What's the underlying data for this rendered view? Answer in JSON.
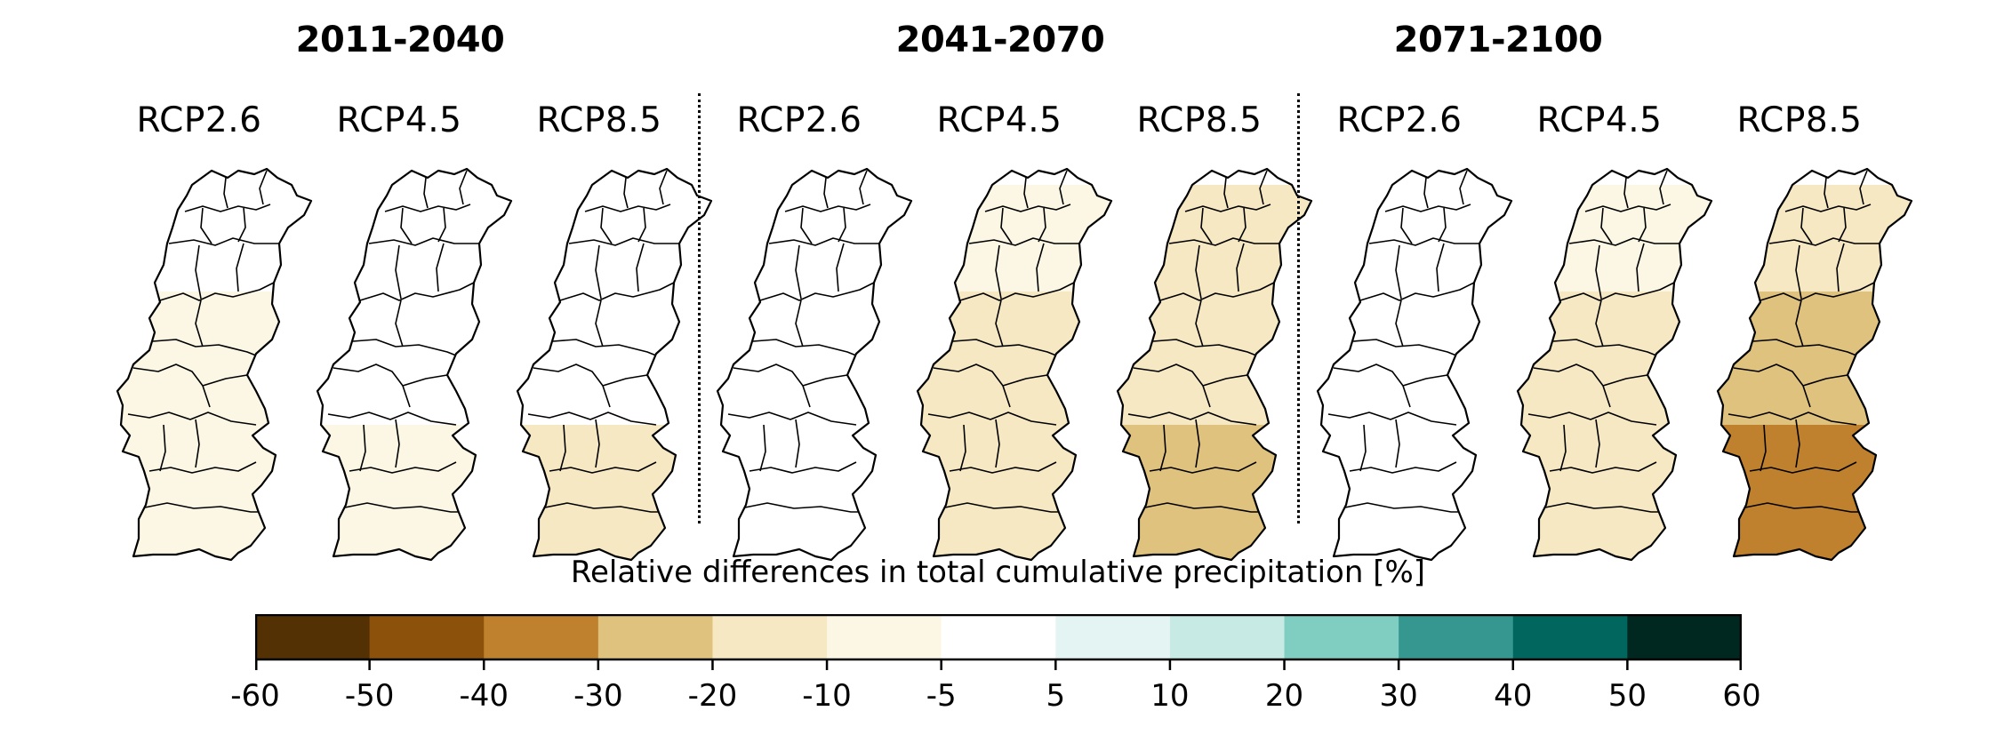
{
  "periods": [
    {
      "label": "2011-2040",
      "scenarios": [
        "RCP2.6",
        "RCP4.5",
        "RCP8.5"
      ]
    },
    {
      "label": "2041-2070",
      "scenarios": [
        "RCP2.6",
        "RCP4.5",
        "RCP8.5"
      ]
    },
    {
      "label": "2071-2100",
      "scenarios": [
        "RCP2.6",
        "RCP4.5",
        "RCP8.5"
      ]
    }
  ],
  "maps": [
    {
      "period": "2011-2040",
      "scenario": "RCP2.6",
      "approx_change_pct": {
        "north": 0,
        "center": -7,
        "south": -7
      }
    },
    {
      "period": "2011-2040",
      "scenario": "RCP4.5",
      "approx_change_pct": {
        "north": 0,
        "center": 0,
        "south": -7
      }
    },
    {
      "period": "2011-2040",
      "scenario": "RCP8.5",
      "approx_change_pct": {
        "north": 0,
        "center": 0,
        "south": -12
      }
    },
    {
      "period": "2041-2070",
      "scenario": "RCP2.6",
      "approx_change_pct": {
        "north": 0,
        "center": 0,
        "south": 0
      }
    },
    {
      "period": "2041-2070",
      "scenario": "RCP4.5",
      "approx_change_pct": {
        "north": -7,
        "center": -12,
        "south": -15
      }
    },
    {
      "period": "2041-2070",
      "scenario": "RCP8.5",
      "approx_change_pct": {
        "north": -15,
        "center": -17,
        "south": -25
      }
    },
    {
      "period": "2071-2100",
      "scenario": "RCP2.6",
      "approx_change_pct": {
        "north": 0,
        "center": 0,
        "south": 0
      }
    },
    {
      "period": "2071-2100",
      "scenario": "RCP4.5",
      "approx_change_pct": {
        "north": -7,
        "center": -12,
        "south": -15
      }
    },
    {
      "period": "2071-2100",
      "scenario": "RCP8.5",
      "approx_change_pct": {
        "north": -18,
        "center": -27,
        "south": -38
      }
    }
  ],
  "colorbar": {
    "title": "Relative differences in total cumulative precipitation [%]",
    "ticks": [
      "-60",
      "-50",
      "-40",
      "-30",
      "-20",
      "-10",
      "-5",
      "5",
      "10",
      "20",
      "30",
      "40",
      "50",
      "60"
    ],
    "bins": [
      {
        "min": -60,
        "max": -50,
        "color": "#543005"
      },
      {
        "min": -50,
        "max": -40,
        "color": "#8c510a"
      },
      {
        "min": -40,
        "max": -30,
        "color": "#bf812d"
      },
      {
        "min": -30,
        "max": -20,
        "color": "#dfc27d"
      },
      {
        "min": -20,
        "max": -10,
        "color": "#f6e8c3"
      },
      {
        "min": -10,
        "max": -5,
        "color": "#fbf7e4"
      },
      {
        "min": -5,
        "max": 5,
        "color": "#ffffff"
      },
      {
        "min": 5,
        "max": 10,
        "color": "#e4f4f3"
      },
      {
        "min": 10,
        "max": 20,
        "color": "#c7eae5"
      },
      {
        "min": 20,
        "max": 30,
        "color": "#80cdc1"
      },
      {
        "min": 30,
        "max": 40,
        "color": "#35978f"
      },
      {
        "min": 40,
        "max": 50,
        "color": "#01665e"
      },
      {
        "min": 50,
        "max": 60,
        "color": "#002720"
      }
    ]
  }
}
